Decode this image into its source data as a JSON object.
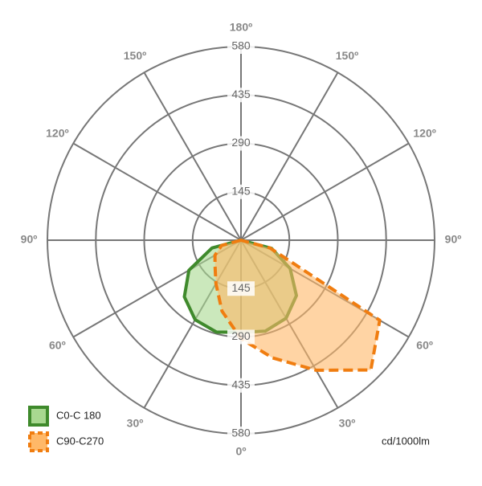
{
  "chart_data": {
    "type": "polar",
    "theta": [
      -90,
      -75,
      -60,
      -45,
      -30,
      -15,
      0,
      15,
      30,
      45,
      60,
      75,
      90
    ],
    "series": [
      {
        "name": "C0-C 180",
        "color": "#3f8a2c",
        "fill": "#a8d890",
        "dashed": false,
        "values": [
          0,
          90,
          180,
          240,
          275,
          285,
          276,
          282,
          270,
          235,
          170,
          95,
          0
        ]
      },
      {
        "name": "C90-C270",
        "color": "#f07d10",
        "fill": "#ffb868",
        "dashed": true,
        "values": [
          0,
          60,
          90,
          110,
          150,
          220,
          295,
          365,
          450,
          550,
          480,
          90,
          0
        ]
      }
    ],
    "rlim": [
      0,
      580
    ],
    "rticks": [
      145,
      290,
      435,
      580
    ],
    "thetaticks": [
      {
        "value": 0,
        "label": "0º"
      },
      {
        "value": 30,
        "label": "30º"
      },
      {
        "value": 60,
        "label": "60º"
      },
      {
        "value": 90,
        "label": "90º"
      },
      {
        "value": 120,
        "label": "120º"
      },
      {
        "value": 150,
        "label": "150º"
      },
      {
        "value": 180,
        "label": "180º"
      }
    ],
    "unit_label": "cd/1000lm",
    "legend": "lower left"
  }
}
